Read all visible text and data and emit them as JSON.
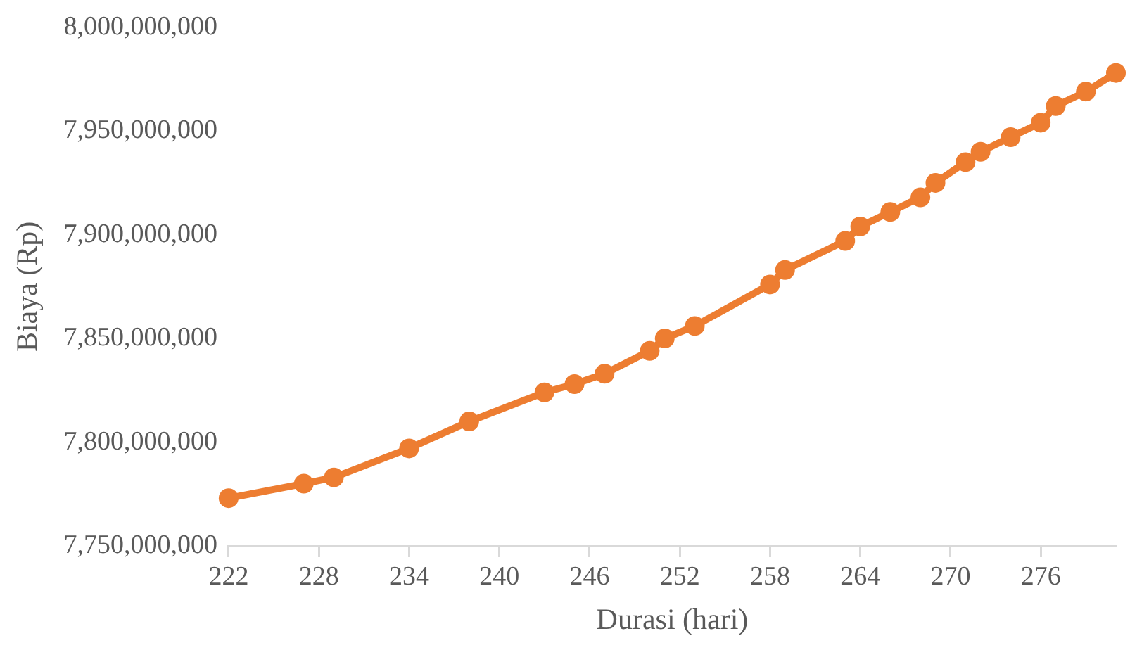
{
  "chart_data": {
    "type": "line",
    "xlabel": "Durasi (hari)",
    "ylabel": "Biaya (Rp)",
    "x": [
      222,
      227,
      229,
      234,
      238,
      243,
      245,
      247,
      250,
      251,
      253,
      258,
      259,
      263,
      264,
      266,
      268,
      269,
      271,
      272,
      274,
      276,
      277,
      279,
      281
    ],
    "series": [
      {
        "color": "#ed7d31",
        "values": [
          7773000000,
          7780000000,
          7783000000,
          7797000000,
          7810000000,
          7824000000,
          7828000000,
          7833000000,
          7844000000,
          7850000000,
          7856000000,
          7876000000,
          7883000000,
          7897000000,
          7904000000,
          7911000000,
          7918000000,
          7925000000,
          7935000000,
          7940000000,
          7947000000,
          7954000000,
          7962000000,
          7969000000,
          7978000000
        ]
      }
    ],
    "xlim": [
      222,
      281
    ],
    "xticks": [
      222,
      228,
      234,
      240,
      246,
      252,
      258,
      264,
      270,
      276
    ],
    "ylim": [
      7750000000,
      8000000000
    ],
    "yticks": [
      {
        "value": 7750000000,
        "label": "7,750,000,000"
      },
      {
        "value": 7800000000,
        "label": "7,800,000,000"
      },
      {
        "value": 7850000000,
        "label": "7,850,000,000"
      },
      {
        "value": 7900000000,
        "label": "7,900,000,000"
      },
      {
        "value": 7950000000,
        "label": "7,950,000,000"
      },
      {
        "value": 8000000000,
        "label": "8,000,000,000"
      }
    ],
    "grid": false,
    "legend": false,
    "marker": "circle",
    "line_style": "solid"
  }
}
